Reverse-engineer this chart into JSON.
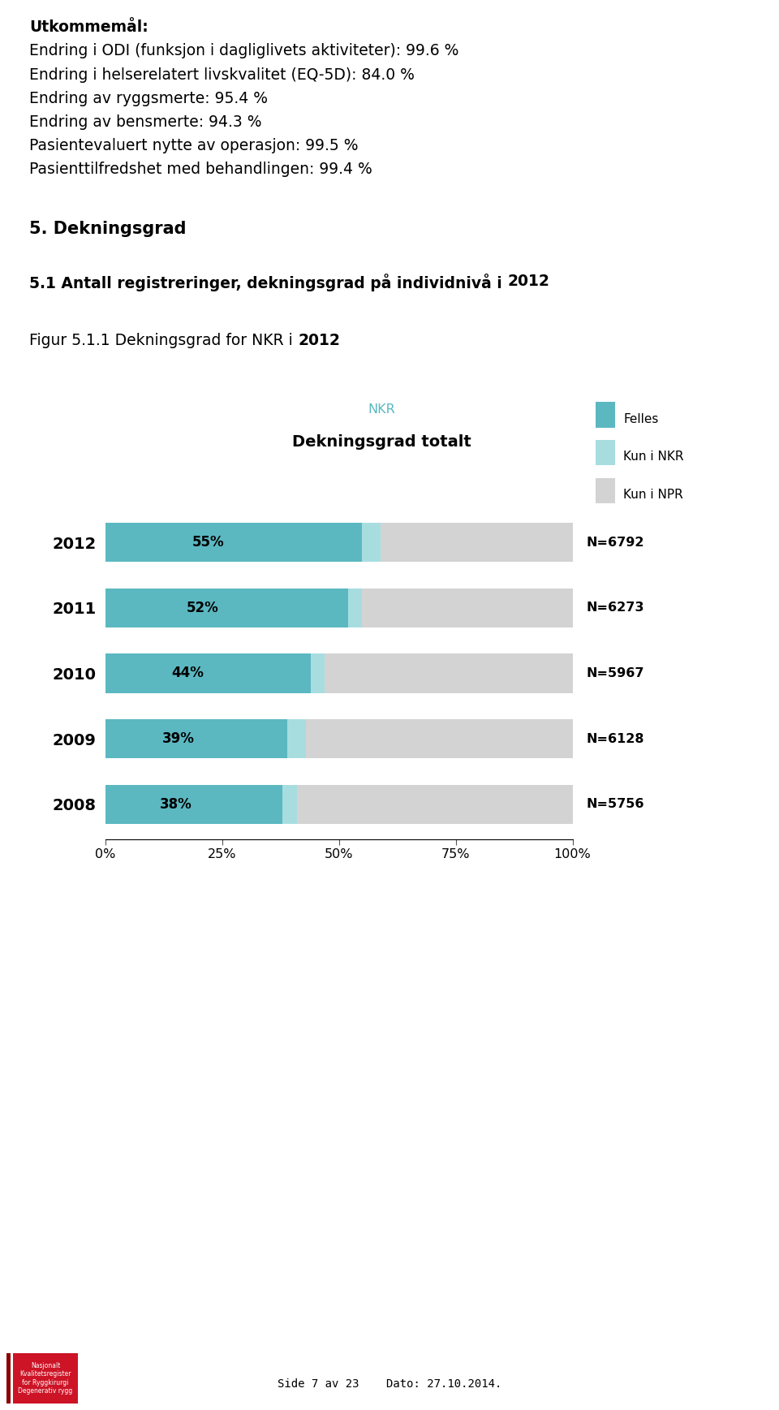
{
  "page_title_lines": [
    "Utkommemål:",
    "Endring i ODI (funksjon i dagliglivets aktiviteter): 99.6 %",
    "Endring i helserelatert livskvalitet (EQ-5D): 84.0 %",
    "Endring av ryggsmerte: 95.4 %",
    "Endring av bensmerte: 94.3 %",
    "Pasientevaluert nytte av operasjon: 99.5 %",
    "Pasienttilfredshet med behandlingen: 99.4 %"
  ],
  "section_title": "5. Dekningsgrad",
  "subsection_title_plain": "5.1 Antall registreringer, dekningsgrad på individnivå i ",
  "subsection_title_bold": "2012",
  "figure_title_plain": "Figur 5.1.1 Dekningsgrad for NKR i ",
  "figure_title_bold": "2012",
  "chart_supertitle": "NKR",
  "chart_title": "Dekningsgrad totalt",
  "years": [
    "2012",
    "2011",
    "2010",
    "2009",
    "2008"
  ],
  "felles_pct": [
    55,
    52,
    44,
    39,
    38
  ],
  "kun_nkr_pct": [
    4,
    3,
    3,
    4,
    3
  ],
  "kun_npr_pct": [
    41,
    45,
    53,
    57,
    59
  ],
  "n_labels": [
    "N=6792",
    "N=6273",
    "N=5967",
    "N=6128",
    "N=5756"
  ],
  "color_felles": "#5bb8c1",
  "color_kun_nkr": "#a8dde0",
  "color_kun_npr": "#d3d3d3",
  "legend_labels": [
    "Felles",
    "Kun i NKR",
    "Kun i NPR"
  ],
  "background_color": "#ffffff",
  "footer_logo_text": "Nasjonalt\nKvalitetsregister\nfor Ryggkirurgi\nDegenerativ rygg",
  "footer_page_text": "Side 7 av 23    Dato: 27.10.2014."
}
